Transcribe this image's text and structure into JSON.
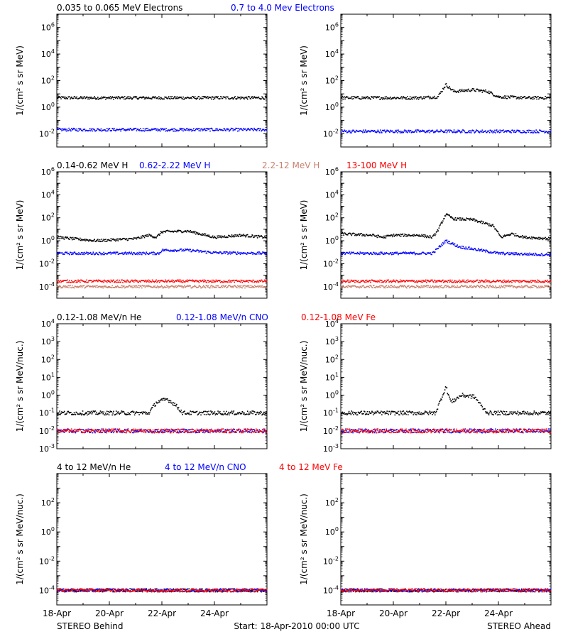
{
  "footer": {
    "left": "STEREO Behind",
    "center": "Start: 18-Apr-2010 00:00 UTC",
    "right": "STEREO Ahead"
  },
  "colors": {
    "black": "#000000",
    "blue": "#0000ff",
    "tan": "#c8826e",
    "red": "#ff0000",
    "background": "#ffffff"
  },
  "chart_data": [
    {
      "type": "scatter",
      "row": 1,
      "side": "left",
      "log_y": true,
      "ylabel": "1/(cm² s sr MeV)",
      "ylim_exp": [
        -3,
        7
      ],
      "ytick_exps": [
        -2,
        0,
        2,
        4,
        6
      ],
      "xlim_days": [
        0,
        8
      ],
      "xtick_labels": [],
      "series": [
        {
          "name": "0.035 to 0.065 MeV Electrons",
          "color": "#000000",
          "points": [
            [
              0,
              5
            ],
            [
              2,
              5
            ],
            [
              4,
              5
            ],
            [
              6,
              5
            ],
            [
              8,
              5
            ]
          ]
        },
        {
          "name": "0.7 to 4.0 Mev Electrons",
          "color": "#0000ff",
          "points": [
            [
              0,
              0.02
            ],
            [
              2,
              0.02
            ],
            [
              4,
              0.02
            ],
            [
              6,
              0.02
            ],
            [
              8,
              0.02
            ]
          ]
        }
      ]
    },
    {
      "type": "scatter",
      "row": 1,
      "side": "right",
      "log_y": true,
      "ylabel": "1/(cm² s sr MeV)",
      "ylim_exp": [
        -3,
        7
      ],
      "ytick_exps": [
        -2,
        0,
        2,
        4,
        6
      ],
      "xlim_days": [
        0,
        8
      ],
      "xtick_labels": [],
      "series": [
        {
          "color": "#000000",
          "points": [
            [
              0,
              5
            ],
            [
              3,
              5
            ],
            [
              3.7,
              6
            ],
            [
              4.0,
              50
            ],
            [
              4.3,
              15
            ],
            [
              5.0,
              20
            ],
            [
              5.6,
              15
            ],
            [
              6.0,
              6
            ],
            [
              7,
              5
            ],
            [
              8,
              5
            ]
          ]
        },
        {
          "color": "#0000ff",
          "points": [
            [
              0,
              0.015
            ],
            [
              4,
              0.015
            ],
            [
              8,
              0.015
            ]
          ]
        }
      ]
    },
    {
      "type": "scatter",
      "row": 2,
      "side": "left",
      "log_y": true,
      "ylabel": "1/(cm² s sr MeV)",
      "ylim_exp": [
        -5,
        6
      ],
      "ytick_exps": [
        -4,
        -2,
        0,
        2,
        4,
        6
      ],
      "xlim_days": [
        0,
        8
      ],
      "xtick_labels": [],
      "series": [
        {
          "name": "0.14-0.62 MeV H",
          "color": "#000000",
          "points": [
            [
              0,
              2
            ],
            [
              1.5,
              1
            ],
            [
              3,
              1.5
            ],
            [
              3.5,
              3
            ],
            [
              3.8,
              2
            ],
            [
              4.0,
              6
            ],
            [
              5.0,
              7
            ],
            [
              6.0,
              2
            ],
            [
              7,
              3
            ],
            [
              8,
              2
            ]
          ]
        },
        {
          "name": "0.62-2.22 MeV H",
          "color": "#0000ff",
          "points": [
            [
              0,
              0.08
            ],
            [
              3.9,
              0.08
            ],
            [
              4.0,
              0.15
            ],
            [
              5.0,
              0.15
            ],
            [
              6.0,
              0.09
            ],
            [
              8,
              0.08
            ]
          ]
        },
        {
          "name": "2.2-12 MeV H",
          "color": "#c8826e",
          "points": [
            [
              0,
              0.0001
            ],
            [
              8,
              0.0001
            ]
          ]
        },
        {
          "name": "13-100 MeV H",
          "color": "#ff0000",
          "points": [
            [
              0,
              0.0003
            ],
            [
              8,
              0.0003
            ]
          ]
        }
      ]
    },
    {
      "type": "scatter",
      "row": 2,
      "side": "right",
      "log_y": true,
      "ylabel": "1/(cm² s sr MeV)",
      "ylim_exp": [
        -5,
        6
      ],
      "ytick_exps": [
        -4,
        -2,
        0,
        2,
        4,
        6
      ],
      "xlim_days": [
        0,
        8
      ],
      "xtick_labels": [],
      "series": [
        {
          "color": "#000000",
          "points": [
            [
              0,
              4
            ],
            [
              1.2,
              3
            ],
            [
              1.6,
              2
            ],
            [
              2.0,
              3
            ],
            [
              3.0,
              3
            ],
            [
              3.5,
              2
            ],
            [
              3.7,
              8
            ],
            [
              4.0,
              200
            ],
            [
              4.3,
              80
            ],
            [
              5.0,
              70
            ],
            [
              5.8,
              20
            ],
            [
              6.1,
              2
            ],
            [
              6.5,
              4
            ],
            [
              7,
              2
            ],
            [
              8,
              1.5
            ]
          ]
        },
        {
          "color": "#0000ff",
          "points": [
            [
              0,
              0.08
            ],
            [
              3.5,
              0.08
            ],
            [
              4.0,
              1.0
            ],
            [
              4.5,
              0.3
            ],
            [
              5.0,
              0.2
            ],
            [
              6.0,
              0.08
            ],
            [
              8,
              0.06
            ]
          ]
        },
        {
          "color": "#c8826e",
          "points": [
            [
              0,
              0.0001
            ],
            [
              8,
              0.0001
            ]
          ]
        },
        {
          "color": "#ff0000",
          "points": [
            [
              0,
              0.0003
            ],
            [
              8,
              0.0003
            ]
          ]
        }
      ]
    },
    {
      "type": "scatter",
      "row": 3,
      "side": "left",
      "log_y": true,
      "ylabel": "1/(cm² s sr MeV/nuc.)",
      "ylim_exp": [
        -3,
        4
      ],
      "ytick_exps": [
        -3,
        -2,
        -1,
        0,
        1,
        2,
        3,
        4
      ],
      "xlim_days": [
        0,
        8
      ],
      "xtick_labels": [],
      "series": [
        {
          "name": "0.12-1.08 MeV/n He",
          "color": "#000000",
          "points": [
            [
              0,
              0.1
            ],
            [
              3.5,
              0.1
            ],
            [
              3.8,
              0.4
            ],
            [
              4.2,
              0.6
            ],
            [
              4.5,
              0.3
            ],
            [
              4.8,
              0.1
            ],
            [
              8,
              0.1
            ]
          ]
        },
        {
          "name": "0.12-1.08 MeV/n CNO",
          "color": "#0000ff",
          "points": [
            [
              0,
              0.01
            ],
            [
              8,
              0.01
            ]
          ]
        },
        {
          "name": "0.12-1.08 MeV Fe",
          "color": "#ff0000",
          "points": [
            [
              0,
              0.01
            ],
            [
              8,
              0.01
            ]
          ]
        }
      ]
    },
    {
      "type": "scatter",
      "row": 3,
      "side": "right",
      "log_y": true,
      "ylabel": "1/(cm² s sr MeV/nuc.)",
      "ylim_exp": [
        -3,
        4
      ],
      "ytick_exps": [
        -3,
        -2,
        -1,
        0,
        1,
        2,
        3,
        4
      ],
      "xlim_days": [
        0,
        8
      ],
      "xtick_labels": [],
      "series": [
        {
          "color": "#000000",
          "points": [
            [
              0,
              0.1
            ],
            [
              3.6,
              0.1
            ],
            [
              3.8,
              0.5
            ],
            [
              4.0,
              3.0
            ],
            [
              4.2,
              0.4
            ],
            [
              4.6,
              1.0
            ],
            [
              5.1,
              0.8
            ],
            [
              5.4,
              0.2
            ],
            [
              5.6,
              0.1
            ],
            [
              8,
              0.1
            ]
          ]
        },
        {
          "color": "#0000ff",
          "points": [
            [
              0,
              0.01
            ],
            [
              8,
              0.01
            ]
          ]
        },
        {
          "color": "#ff0000",
          "points": [
            [
              0,
              0.01
            ],
            [
              8,
              0.01
            ]
          ]
        }
      ]
    },
    {
      "type": "scatter",
      "row": 4,
      "side": "left",
      "log_y": true,
      "ylabel": "1/(cm² s sr MeV/nuc.)",
      "ylim_exp": [
        -5,
        4
      ],
      "ytick_exps": [
        -4,
        -2,
        0,
        2
      ],
      "xlim_days": [
        0,
        8
      ],
      "xtick_labels": [
        "18-Apr",
        "20-Apr",
        "22-Apr",
        "24-Apr"
      ],
      "series": [
        {
          "name": "4 to 12 MeV/n He",
          "color": "#000000",
          "points": [
            [
              0,
              0.0001
            ],
            [
              8,
              0.0001
            ]
          ]
        },
        {
          "name": "4 to 12 MeV/n CNO",
          "color": "#0000ff",
          "points": [
            [
              0,
              0.0001
            ],
            [
              8,
              0.0001
            ]
          ]
        },
        {
          "name": "4 to 12 MeV Fe",
          "color": "#ff0000",
          "points": [
            [
              0,
              0.0001
            ],
            [
              8,
              0.0001
            ]
          ]
        }
      ]
    },
    {
      "type": "scatter",
      "row": 4,
      "side": "right",
      "log_y": true,
      "ylabel": "1/(cm² s sr MeV/nuc.)",
      "ylim_exp": [
        -5,
        4
      ],
      "ytick_exps": [
        -4,
        -2,
        0,
        2
      ],
      "xlim_days": [
        0,
        8
      ],
      "xtick_labels": [
        "18-Apr",
        "20-Apr",
        "22-Apr",
        "24-Apr"
      ],
      "series": [
        {
          "color": "#000000",
          "points": [
            [
              0,
              0.0001
            ],
            [
              8,
              0.0001
            ]
          ]
        },
        {
          "color": "#0000ff",
          "points": [
            [
              0,
              0.0001
            ],
            [
              8,
              0.0001
            ]
          ]
        },
        {
          "color": "#ff0000",
          "points": [
            [
              0,
              0.0001
            ],
            [
              8,
              0.0001
            ]
          ]
        }
      ]
    }
  ]
}
